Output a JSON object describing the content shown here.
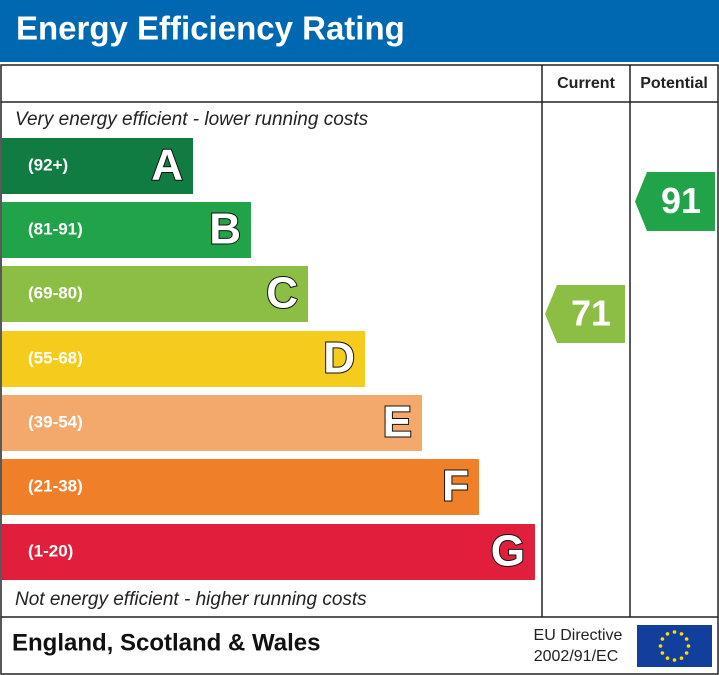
{
  "header": {
    "title": "Energy Efficiency Rating"
  },
  "columns": {
    "current": "Current",
    "potential": "Potential"
  },
  "top_note": "Very energy efficient - lower running costs",
  "bottom_note": "Not energy efficient - higher running costs",
  "bands": [
    {
      "range": "(92+)",
      "letter": "A",
      "color": "#107c41"
    },
    {
      "range": "(81-91)",
      "letter": "B",
      "color": "#21a34a"
    },
    {
      "range": "(69-80)",
      "letter": "C",
      "color": "#8cbd45"
    },
    {
      "range": "(55-68)",
      "letter": "D",
      "color": "#f5cc1c"
    },
    {
      "range": "(39-54)",
      "letter": "E",
      "color": "#f2a96b"
    },
    {
      "range": "(21-38)",
      "letter": "F",
      "color": "#ef7f28"
    },
    {
      "range": "(1-20)",
      "letter": "G",
      "color": "#e11f3d"
    }
  ],
  "current": {
    "value": 71,
    "color": "#8cbd45"
  },
  "potential": {
    "value": 91,
    "color": "#21a34a"
  },
  "footer": {
    "region": "England, Scotland & Wales",
    "directive_line1": "EU Directive",
    "directive_line2": "2002/91/EC"
  }
}
